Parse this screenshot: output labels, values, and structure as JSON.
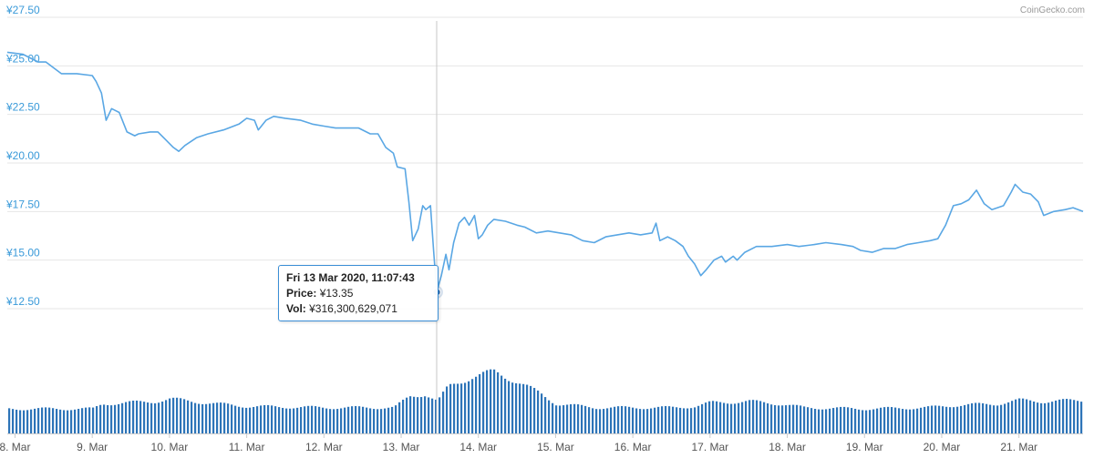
{
  "credit": "CoinGecko.com",
  "colors": {
    "line": "#5aa7e4",
    "bar": "#2d74b8",
    "grid": "#e6e6e6",
    "crosshair": "#c8c8c8",
    "point": "#1f5fa7",
    "ytick": "#3a9ad9"
  },
  "tooltip": {
    "date": "Fri 13 Mar 2020, 11:07:43",
    "price_label": "Price:",
    "price_value": "¥13.35",
    "vol_label": "Vol:",
    "vol_value": "¥316,300,629,071"
  },
  "chart_data": {
    "type": "line",
    "title": "",
    "xlabel": "",
    "ylabel": "",
    "y_ticks": [
      "¥27.50",
      "¥25.00",
      "¥22.50",
      "¥20.00",
      "¥17.50",
      "¥15.00",
      "¥12.50"
    ],
    "y_tick_values": [
      27.5,
      25,
      22.5,
      20,
      17.5,
      15,
      12.5
    ],
    "ylim": [
      12.5,
      27.5
    ],
    "xlim": [
      7.9,
      21.83
    ],
    "x_ticks": [
      "8. Mar",
      "9. Mar",
      "10. Mar",
      "11. Mar",
      "12. Mar",
      "13. Mar",
      "14. Mar",
      "15. Mar",
      "16. Mar",
      "17. Mar",
      "18. Mar",
      "19. Mar",
      "20. Mar",
      "21. Mar"
    ],
    "x_tick_values": [
      8,
      9,
      10,
      11,
      12,
      13,
      14,
      15,
      16,
      17,
      18,
      19,
      20,
      21
    ],
    "grid": true,
    "highlight": {
      "x": 13.46,
      "y": 13.35
    },
    "series": [
      {
        "values_note": "",
        "points": [
          [
            7.9,
            25.7
          ],
          [
            8.1,
            25.6
          ],
          [
            8.3,
            25.2
          ],
          [
            8.4,
            25.2
          ],
          [
            8.5,
            24.9
          ],
          [
            8.6,
            24.6
          ],
          [
            8.8,
            24.6
          ],
          [
            9.0,
            24.5
          ],
          [
            9.05,
            24.2
          ],
          [
            9.12,
            23.6
          ],
          [
            9.18,
            22.2
          ],
          [
            9.25,
            22.8
          ],
          [
            9.35,
            22.6
          ],
          [
            9.45,
            21.6
          ],
          [
            9.55,
            21.4
          ],
          [
            9.6,
            21.5
          ],
          [
            9.75,
            21.6
          ],
          [
            9.85,
            21.6
          ],
          [
            9.95,
            21.2
          ],
          [
            10.05,
            20.8
          ],
          [
            10.12,
            20.6
          ],
          [
            10.2,
            20.9
          ],
          [
            10.35,
            21.3
          ],
          [
            10.5,
            21.5
          ],
          [
            10.7,
            21.7
          ],
          [
            10.9,
            22.0
          ],
          [
            11.0,
            22.3
          ],
          [
            11.1,
            22.2
          ],
          [
            11.15,
            21.7
          ],
          [
            11.25,
            22.2
          ],
          [
            11.35,
            22.4
          ],
          [
            11.5,
            22.3
          ],
          [
            11.7,
            22.2
          ],
          [
            11.85,
            22.0
          ],
          [
            12.0,
            21.9
          ],
          [
            12.15,
            21.8
          ],
          [
            12.3,
            21.8
          ],
          [
            12.45,
            21.8
          ],
          [
            12.6,
            21.5
          ],
          [
            12.7,
            21.5
          ],
          [
            12.8,
            20.8
          ],
          [
            12.9,
            20.5
          ],
          [
            12.95,
            19.8
          ],
          [
            13.05,
            19.7
          ],
          [
            13.1,
            18.0
          ],
          [
            13.15,
            16.0
          ],
          [
            13.22,
            16.6
          ],
          [
            13.28,
            17.8
          ],
          [
            13.32,
            17.6
          ],
          [
            13.38,
            17.8
          ],
          [
            13.42,
            15.5
          ],
          [
            13.46,
            13.35
          ],
          [
            13.52,
            14.2
          ],
          [
            13.58,
            15.3
          ],
          [
            13.62,
            14.5
          ],
          [
            13.68,
            15.9
          ],
          [
            13.75,
            16.9
          ],
          [
            13.82,
            17.2
          ],
          [
            13.88,
            16.8
          ],
          [
            13.95,
            17.3
          ],
          [
            14.0,
            16.1
          ],
          [
            14.05,
            16.3
          ],
          [
            14.12,
            16.8
          ],
          [
            14.2,
            17.1
          ],
          [
            14.35,
            17.0
          ],
          [
            14.5,
            16.8
          ],
          [
            14.6,
            16.7
          ],
          [
            14.75,
            16.4
          ],
          [
            14.9,
            16.5
          ],
          [
            15.05,
            16.4
          ],
          [
            15.2,
            16.3
          ],
          [
            15.35,
            16.0
          ],
          [
            15.5,
            15.9
          ],
          [
            15.65,
            16.2
          ],
          [
            15.8,
            16.3
          ],
          [
            15.95,
            16.4
          ],
          [
            16.1,
            16.3
          ],
          [
            16.25,
            16.4
          ],
          [
            16.3,
            16.9
          ],
          [
            16.35,
            16.0
          ],
          [
            16.45,
            16.2
          ],
          [
            16.55,
            16.0
          ],
          [
            16.65,
            15.7
          ],
          [
            16.72,
            15.2
          ],
          [
            16.8,
            14.8
          ],
          [
            16.88,
            14.2
          ],
          [
            16.95,
            14.5
          ],
          [
            17.05,
            15.0
          ],
          [
            17.15,
            15.2
          ],
          [
            17.2,
            14.9
          ],
          [
            17.3,
            15.2
          ],
          [
            17.35,
            15.0
          ],
          [
            17.45,
            15.4
          ],
          [
            17.6,
            15.7
          ],
          [
            17.8,
            15.7
          ],
          [
            18.0,
            15.8
          ],
          [
            18.15,
            15.7
          ],
          [
            18.35,
            15.8
          ],
          [
            18.5,
            15.9
          ],
          [
            18.7,
            15.8
          ],
          [
            18.85,
            15.7
          ],
          [
            18.95,
            15.5
          ],
          [
            19.1,
            15.4
          ],
          [
            19.25,
            15.6
          ],
          [
            19.4,
            15.6
          ],
          [
            19.55,
            15.8
          ],
          [
            19.7,
            15.9
          ],
          [
            19.85,
            16.0
          ],
          [
            19.95,
            16.1
          ],
          [
            20.05,
            16.8
          ],
          [
            20.15,
            17.8
          ],
          [
            20.25,
            17.9
          ],
          [
            20.35,
            18.1
          ],
          [
            20.45,
            18.6
          ],
          [
            20.55,
            17.9
          ],
          [
            20.65,
            17.6
          ],
          [
            20.8,
            17.8
          ],
          [
            20.9,
            18.5
          ],
          [
            20.95,
            18.9
          ],
          [
            21.05,
            18.5
          ],
          [
            21.15,
            18.4
          ],
          [
            21.25,
            18.0
          ],
          [
            21.32,
            17.3
          ],
          [
            21.45,
            17.5
          ],
          [
            21.6,
            17.6
          ],
          [
            21.7,
            17.7
          ],
          [
            21.83,
            17.5
          ]
        ]
      }
    ],
    "volume_note": "",
    "volume_profile": [
      [
        7.9,
        1.0
      ],
      [
        9.0,
        1.0
      ],
      [
        9.12,
        1.2
      ],
      [
        9.8,
        1.3
      ],
      [
        10.0,
        1.4
      ],
      [
        10.3,
        1.3
      ],
      [
        10.6,
        1.2
      ],
      [
        11.0,
        1.1
      ],
      [
        12.0,
        1.05
      ],
      [
        12.9,
        1.05
      ],
      [
        13.1,
        1.5
      ],
      [
        13.3,
        1.6
      ],
      [
        13.46,
        1.3
      ],
      [
        13.6,
        1.9
      ],
      [
        13.9,
        2.3
      ],
      [
        14.2,
        2.5
      ],
      [
        14.5,
        2.1
      ],
      [
        14.8,
        1.6
      ],
      [
        15.0,
        1.2
      ],
      [
        15.5,
        1.05
      ],
      [
        16.5,
        1.05
      ],
      [
        16.8,
        1.1
      ],
      [
        17.0,
        1.25
      ],
      [
        17.5,
        1.3
      ],
      [
        17.9,
        1.2
      ],
      [
        18.2,
        1.05
      ],
      [
        19.0,
        1.0
      ],
      [
        19.8,
        1.05
      ],
      [
        20.2,
        1.15
      ],
      [
        20.7,
        1.2
      ],
      [
        21.0,
        1.35
      ],
      [
        21.3,
        1.3
      ],
      [
        21.83,
        1.35
      ]
    ]
  }
}
